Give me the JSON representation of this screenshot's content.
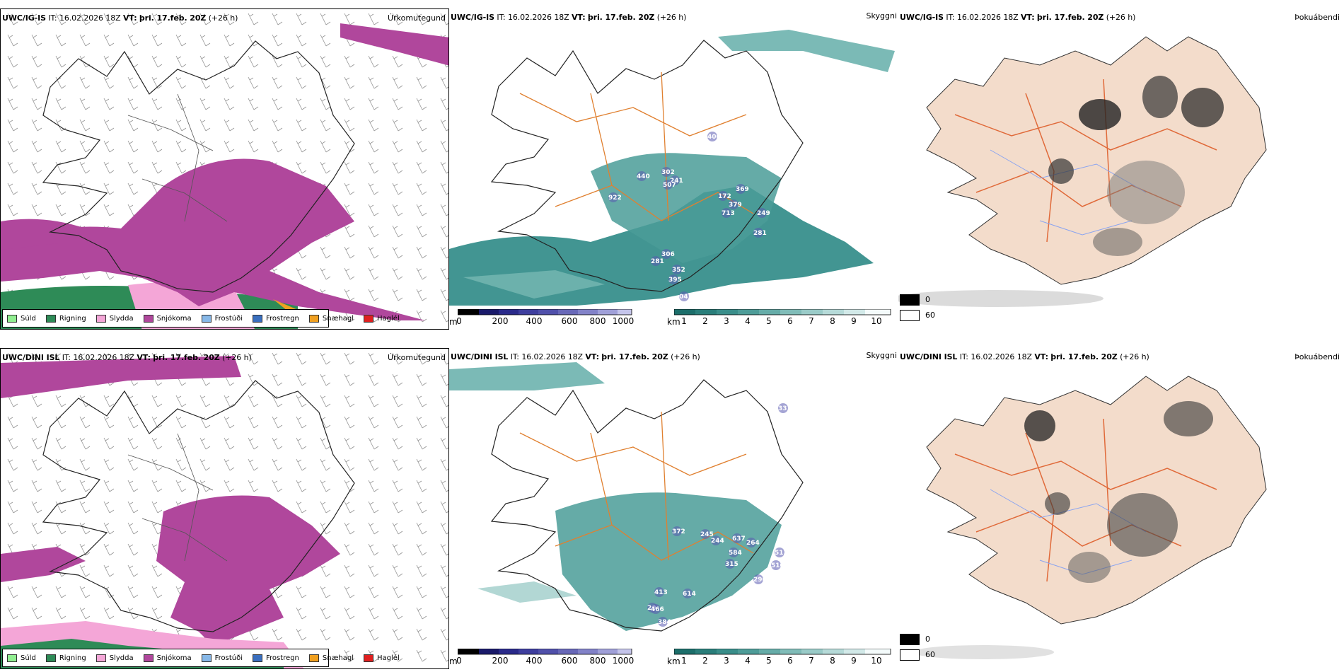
{
  "rows": [
    {
      "model": "UWC/IG-IS",
      "it_label": "IT:",
      "it_value": "16.02.2026 18Z",
      "vt_label": "VT:",
      "vt_value": "þri. 17.feb. 20Z",
      "lead": "(+26 h)",
      "visibility_labels": [
        "440",
        "302",
        "241",
        "507",
        "922",
        "400",
        "172",
        "369",
        "379",
        "713",
        "249",
        "281",
        "306",
        "281",
        "352",
        "395",
        "04"
      ]
    },
    {
      "model": "UWC/DINI ISL",
      "it_label": "IT:",
      "it_value": "16.02.2026 18Z",
      "vt_label": "VT:",
      "vt_value": "þri. 17.feb. 20Z",
      "lead": "(+26 h)",
      "visibility_labels": [
        "331",
        "372",
        "245",
        "244",
        "637",
        "264",
        "584",
        "315",
        "513",
        "510",
        "290",
        "413",
        "614",
        "20",
        "466",
        "384"
      ]
    }
  ],
  "panel_titles": {
    "precip": "Úrkomutegund",
    "visibility": "Skyggni",
    "fog": "Þokuábendi"
  },
  "precip_legend": [
    {
      "label": "Súld",
      "color": "#90ee90"
    },
    {
      "label": "Rigning",
      "color": "#2e8b57"
    },
    {
      "label": "Slydda",
      "color": "#f4a6d7"
    },
    {
      "label": "Snjókoma",
      "color": "#b0479c"
    },
    {
      "label": "Frostúði",
      "color": "#87b8e8"
    },
    {
      "label": "Frostregn",
      "color": "#3a6fbf"
    },
    {
      "label": "Snæhagl",
      "color": "#f0a020"
    },
    {
      "label": "Haglél",
      "color": "#e02020"
    }
  ],
  "height_bar": {
    "unit": "m",
    "ticks": [
      "0",
      "200",
      "400",
      "600",
      "800",
      "1000"
    ]
  },
  "vis_bar": {
    "unit": "km",
    "ticks": [
      "1",
      "2",
      "3",
      "4",
      "5",
      "6",
      "7",
      "8",
      "9",
      "10"
    ]
  },
  "fog_legend": {
    "top": "0",
    "bottom": "60"
  },
  "colors": {
    "snow": "#b0479c",
    "sleet": "#f4a6d7",
    "rain": "#2e8b57",
    "visibility_teal": "#2e8a86",
    "land_beige": "#f3dccb",
    "roads": "#e06a3a",
    "rivers": "#8aa4f0"
  }
}
